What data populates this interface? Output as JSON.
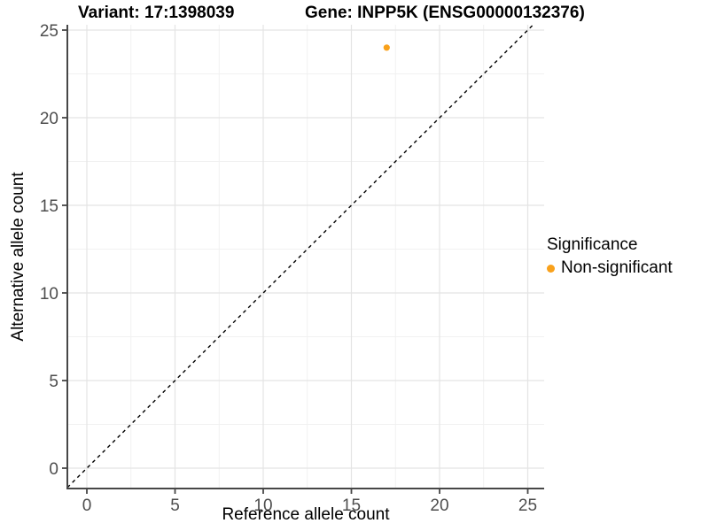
{
  "chart_data": {
    "type": "scatter",
    "title_left": "Variant: 17:1398039",
    "title_right": "Gene: INPP5K (ENSG00000132376)",
    "xlabel": "Reference allele count",
    "ylabel": "Alternative allele count",
    "xlim": [
      0,
      25
    ],
    "ylim": [
      0,
      25
    ],
    "x_ticks": [
      0,
      5,
      10,
      15,
      20,
      25
    ],
    "y_ticks": [
      0,
      5,
      10,
      15,
      20,
      25
    ],
    "minor_ticks": [
      2.5,
      7.5,
      12.5,
      17.5,
      22.5
    ],
    "grid": "on",
    "points": [
      {
        "x": 17,
        "y": 24,
        "series": "Non-significant"
      }
    ],
    "reference_line": {
      "type": "identity",
      "slope": 1,
      "intercept": 0,
      "style": "dashed",
      "color": "#000000"
    },
    "legend": {
      "title": "Significance",
      "position": "right",
      "entries": [
        {
          "label": "Non-significant",
          "color": "#F9A11B"
        }
      ]
    },
    "colors": {
      "point": "#F9A11B",
      "grid_major": "#E4E4E4",
      "grid_minor": "#F1F1F1",
      "axis_line": "#474747",
      "tick_text": "#4D4D4D"
    }
  }
}
